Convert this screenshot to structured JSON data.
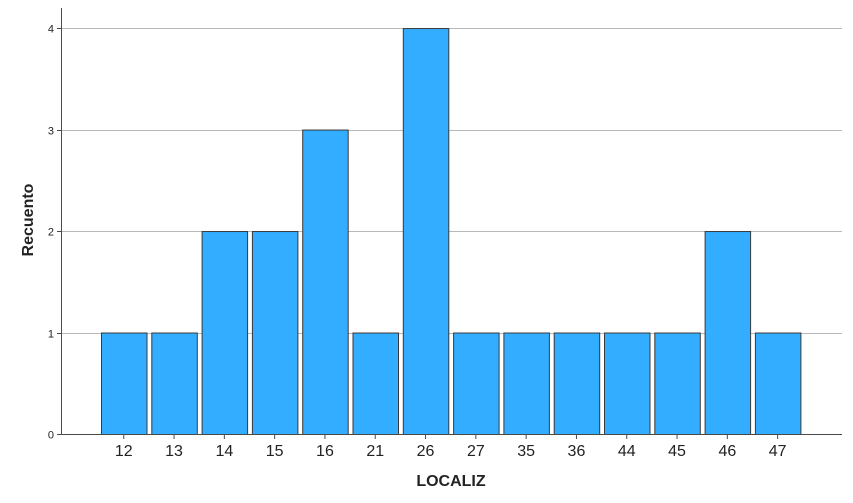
{
  "chart_data": {
    "type": "bar",
    "title": "",
    "xlabel": "LOCALIZ",
    "ylabel": "Recuento",
    "categories": [
      "12",
      "13",
      "14",
      "15",
      "16",
      "21",
      "26",
      "27",
      "35",
      "36",
      "44",
      "45",
      "46",
      "47"
    ],
    "values": [
      1,
      1,
      2,
      2,
      3,
      1,
      4,
      1,
      1,
      1,
      1,
      1,
      2,
      1
    ],
    "ylim": [
      0,
      4.04
    ],
    "yticks": [
      "0",
      "1",
      "2",
      "3",
      "4"
    ],
    "grid": true,
    "legend": "none",
    "bar_color": "#33adff",
    "bar_edge_color": "#3a3a3a",
    "grid_color": "#b8b8b8"
  }
}
